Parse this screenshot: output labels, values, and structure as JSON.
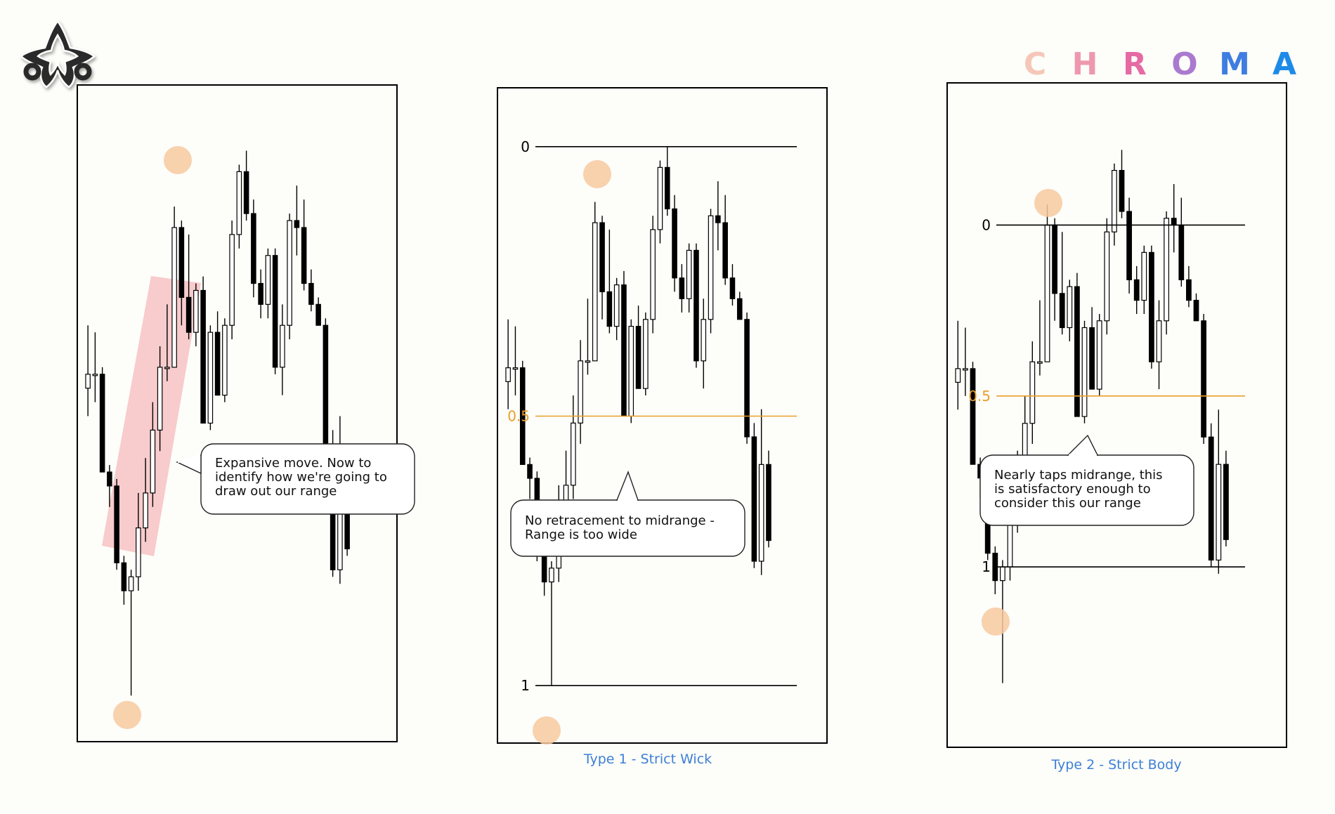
{
  "brand": {
    "logo_icon": "star-knot-logo-icon",
    "letters": [
      {
        "char": "C",
        "color": "#f5c7b8"
      },
      {
        "char": "H",
        "color": "#ee98ae"
      },
      {
        "char": "R",
        "color": "#e56aa3"
      },
      {
        "char": "O",
        "color": "#a97ad0"
      },
      {
        "char": "M",
        "color": "#3f7de0"
      },
      {
        "char": "A",
        "color": "#1e8ae8"
      }
    ]
  },
  "colors": {
    "bull_fill": "#ffffff",
    "bear_fill": "#000000",
    "candle_stroke": "#000000",
    "midrange_line": "#e8a02a",
    "highlight_circle": "#f7c9a0",
    "impulse_band": "#f7c2c4",
    "caption": "#3d7fd6"
  },
  "panels": [
    {
      "id": "panel-expansive-move",
      "caption": "",
      "callout": [
        "Expansive move. Now to",
        "identify how we're going to",
        "draw out our range"
      ],
      "levels": []
    },
    {
      "id": "panel-type1",
      "caption": "Type 1 - Strict Wick",
      "callout": [
        "No retracement to midrange -",
        "Range is too wide"
      ],
      "levels": [
        {
          "label": "0",
          "kind": "range-high"
        },
        {
          "label": "0.5",
          "kind": "midrange"
        },
        {
          "label": "1",
          "kind": "range-low"
        }
      ]
    },
    {
      "id": "panel-type2",
      "caption": "Type 2 - Strict Body",
      "callout": [
        "Nearly taps midrange, this",
        "is satisfactory enough to",
        "consider this our range"
      ],
      "levels": [
        {
          "label": "0",
          "kind": "range-high"
        },
        {
          "label": "0.5",
          "kind": "midrange"
        },
        {
          "label": "1",
          "kind": "range-low"
        }
      ]
    }
  ],
  "candles": [
    {
      "o": 104,
      "h": 113,
      "l": 100,
      "c": 106
    },
    {
      "o": 106,
      "h": 112,
      "l": 102,
      "c": 106
    },
    {
      "o": 106,
      "h": 107,
      "l": 92,
      "c": 92
    },
    {
      "o": 92,
      "h": 93,
      "l": 87,
      "c": 90
    },
    {
      "o": 90,
      "h": 91,
      "l": 78,
      "c": 79
    },
    {
      "o": 79,
      "h": 80,
      "l": 73,
      "c": 75
    },
    {
      "o": 75,
      "h": 78,
      "l": 60,
      "c": 77
    },
    {
      "o": 77,
      "h": 89,
      "l": 75,
      "c": 84
    },
    {
      "o": 84,
      "h": 94,
      "l": 82,
      "c": 89
    },
    {
      "o": 89,
      "h": 102,
      "l": 87,
      "c": 98
    },
    {
      "o": 98,
      "h": 110,
      "l": 95,
      "c": 107
    },
    {
      "o": 107,
      "h": 116,
      "l": 105,
      "c": 107
    },
    {
      "o": 107,
      "h": 130,
      "l": 107,
      "c": 127
    },
    {
      "o": 127,
      "h": 128,
      "l": 113,
      "c": 117
    },
    {
      "o": 117,
      "h": 126,
      "l": 111,
      "c": 112
    },
    {
      "o": 112,
      "h": 119,
      "l": 110,
      "c": 118
    },
    {
      "o": 118,
      "h": 120,
      "l": 99,
      "c": 99
    },
    {
      "o": 99,
      "h": 113,
      "l": 98,
      "c": 112
    },
    {
      "o": 112,
      "h": 115,
      "l": 103,
      "c": 103
    },
    {
      "o": 103,
      "h": 114,
      "l": 102,
      "c": 113
    },
    {
      "o": 113,
      "h": 128,
      "l": 111,
      "c": 126
    },
    {
      "o": 126,
      "h": 136,
      "l": 124,
      "c": 135
    },
    {
      "o": 135,
      "h": 138,
      "l": 128,
      "c": 129
    },
    {
      "o": 129,
      "h": 131,
      "l": 117,
      "c": 119
    },
    {
      "o": 119,
      "h": 121,
      "l": 114,
      "c": 116
    },
    {
      "o": 116,
      "h": 124,
      "l": 114,
      "c": 123
    },
    {
      "o": 123,
      "h": 124,
      "l": 106,
      "c": 107
    },
    {
      "o": 107,
      "h": 116,
      "l": 103,
      "c": 113
    },
    {
      "o": 113,
      "h": 129,
      "l": 111,
      "c": 128
    },
    {
      "o": 128,
      "h": 133,
      "l": 123,
      "c": 127
    },
    {
      "o": 127,
      "h": 131,
      "l": 118,
      "c": 119
    },
    {
      "o": 119,
      "h": 121,
      "l": 115,
      "c": 116
    },
    {
      "o": 116,
      "h": 117,
      "l": 113,
      "c": 113
    },
    {
      "o": 113,
      "h": 114,
      "l": 95,
      "c": 96
    },
    {
      "o": 96,
      "h": 98,
      "l": 77,
      "c": 78
    },
    {
      "o": 78,
      "h": 100,
      "l": 76,
      "c": 92
    },
    {
      "o": 92,
      "h": 94,
      "l": 80,
      "c": 81
    }
  ],
  "range_reference": {
    "wick_high": 138,
    "wick_low": 60,
    "body_high": 127,
    "body_low": 77
  }
}
